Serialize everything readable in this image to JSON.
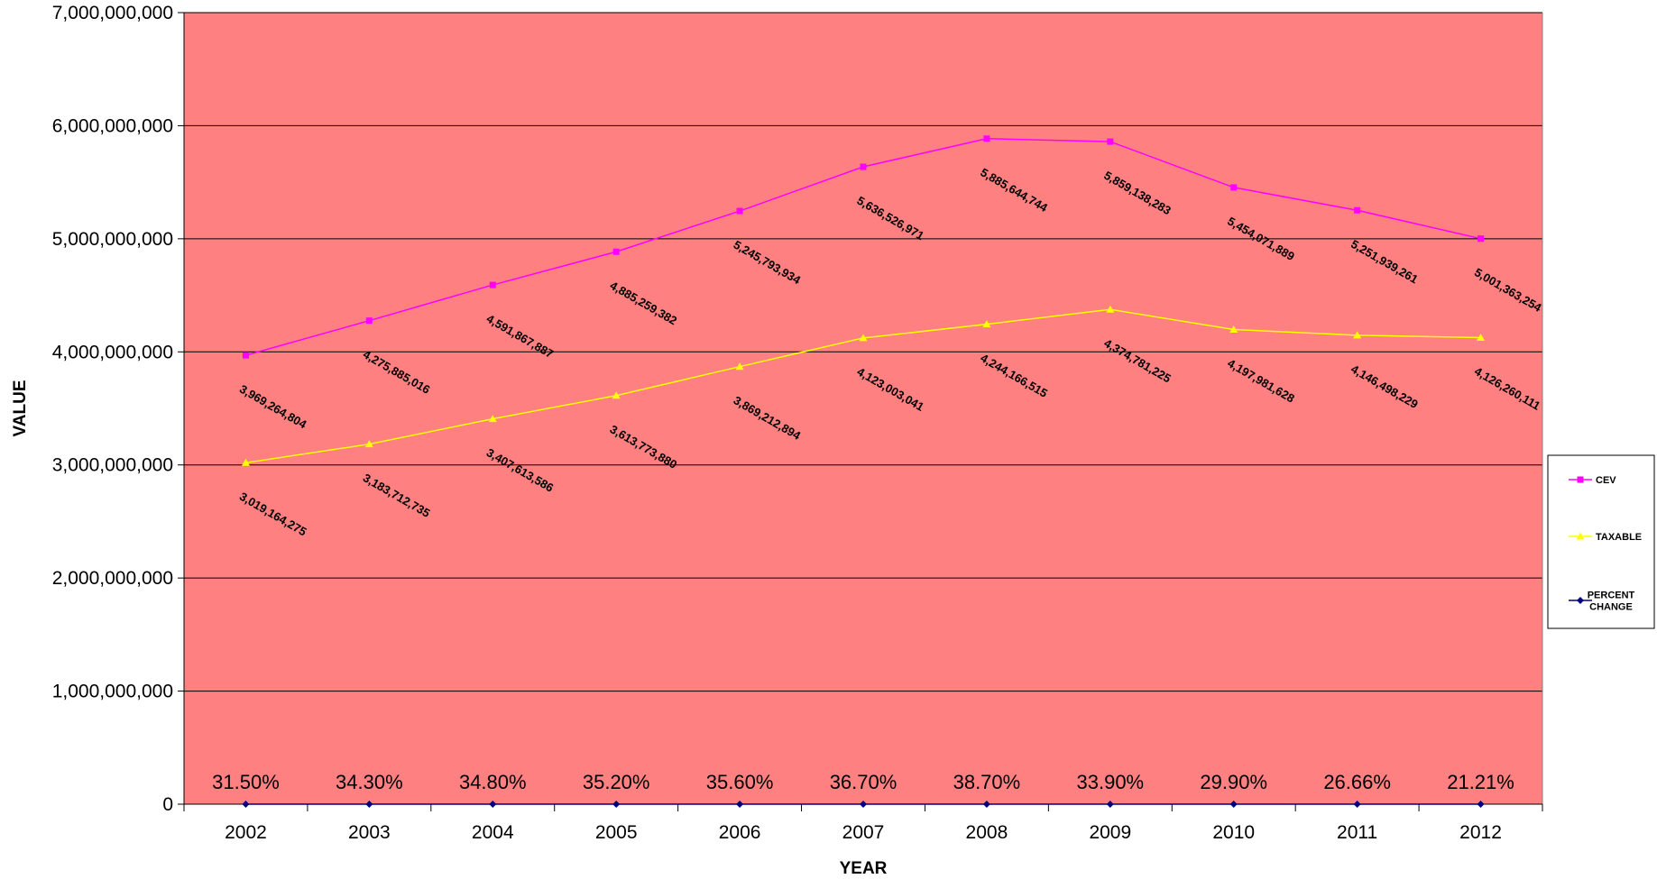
{
  "chart_data": {
    "type": "line",
    "title": "",
    "xlabel": "YEAR",
    "ylabel": "VALUE",
    "ylim": [
      0,
      7000000000
    ],
    "y_ticks": [
      0,
      1000000000,
      2000000000,
      3000000000,
      4000000000,
      5000000000,
      6000000000,
      7000000000
    ],
    "y_tick_labels": [
      "0",
      "1,000,000,000",
      "2,000,000,000",
      "3,000,000,000",
      "4,000,000,000",
      "5,000,000,000",
      "6,000,000,000",
      "7,000,000,000"
    ],
    "categories": [
      "2002",
      "2003",
      "2004",
      "2005",
      "2006",
      "2007",
      "2008",
      "2009",
      "2010",
      "2011",
      "2012"
    ],
    "plot_background": "#FF8080",
    "grid": true,
    "legend_position": "right",
    "series": [
      {
        "name": "CEV",
        "color": "#FF00FF",
        "marker": "square",
        "values": [
          3969264804,
          4275885016,
          4591867887,
          4885259382,
          5245793934,
          5636526971,
          5885644744,
          5859138283,
          5454071889,
          5251939261,
          5001363254
        ],
        "labels": [
          "3,969,264,804",
          "4,275,885,016",
          "4,591,867,887",
          "4,885,259,382",
          "5,245,793,934",
          "5,636,526,971",
          "5,885,644,744",
          "5,859,138,283",
          "5,454,071,889",
          "5,251,939,261",
          "5,001,363,254"
        ]
      },
      {
        "name": "TAXABLE",
        "color": "#FFFF00",
        "marker": "triangle",
        "values": [
          3019164275,
          3183712735,
          3407613586,
          3613773880,
          3869212894,
          4123003041,
          4244166515,
          4374781225,
          4197981628,
          4146498229,
          4126260111
        ],
        "labels": [
          "3,019,164,275",
          "3,183,712,735",
          "3,407,613,586",
          "3,613,773,880",
          "3,869,212,894",
          "4,123,003,041",
          "4,244,166,515",
          "4,374,781,225",
          "4,197,981,628",
          "4,146,498,229",
          "4,126,260,111"
        ]
      },
      {
        "name": "PERCENT CHANGE",
        "legend_lines": [
          "PERCENT",
          "CHANGE"
        ],
        "color": "#000080",
        "marker": "diamond",
        "values": [
          0.315,
          0.343,
          0.348,
          0.352,
          0.356,
          0.367,
          0.387,
          0.339,
          0.299,
          0.2666,
          0.2121
        ],
        "labels": [
          "31.50%",
          "34.30%",
          "34.80%",
          "35.20%",
          "35.60%",
          "36.70%",
          "38.70%",
          "33.90%",
          "29.90%",
          "26.66%",
          "21.21%"
        ]
      }
    ]
  }
}
